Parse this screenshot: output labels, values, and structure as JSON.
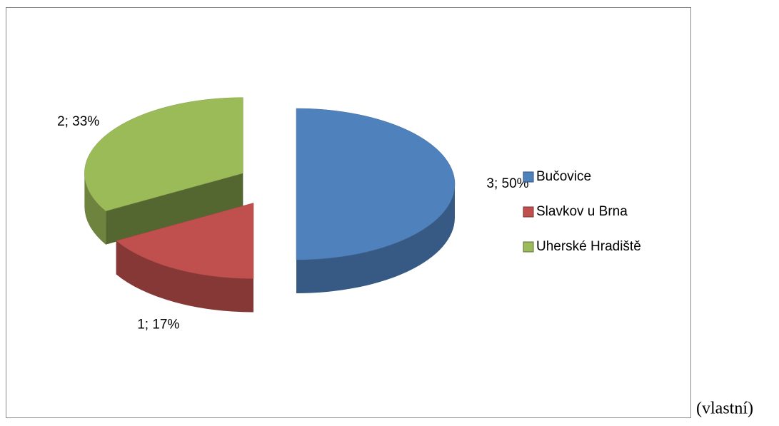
{
  "chart_data": {
    "type": "pie",
    "categories": [
      "Bučovice",
      "Slavkov u Brna",
      "Uherské Hradiště"
    ],
    "values": [
      3,
      1,
      2
    ],
    "value_labels": [
      "3; 50%",
      "1; 17%",
      "2; 33%"
    ],
    "colors": [
      "#4f81bd",
      "#c0504d",
      "#9bbb59"
    ],
    "legend": "right",
    "exploded": true,
    "three_d": true
  },
  "caption": "(vlastní)"
}
